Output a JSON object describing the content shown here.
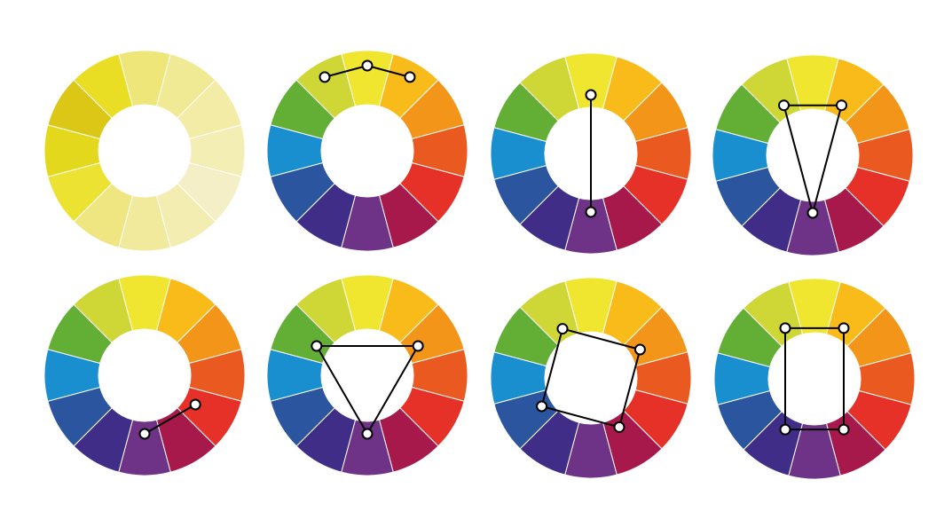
{
  "wheels": [
    {
      "colors": [
        "#efe67a",
        "#f1ea95",
        "#f2eca6",
        "#f3eeb3",
        "#f4efc6",
        "#f3edb2",
        "#f1ea9c",
        "#efe681",
        "#ece231",
        "#e4d81c",
        "#dcc717",
        "#e9de24"
      ],
      "points": []
    },
    {
      "colors": [
        "#f0e52f",
        "#f9bb1a",
        "#f39518",
        "#ea5a20",
        "#e53128",
        "#a8194b",
        "#6e3387",
        "#3f2d87",
        "#2c55a0",
        "#1a8fcf",
        "#63ae34",
        "#cfd736"
      ],
      "points": [
        11,
        0,
        1
      ]
    },
    {
      "colors": [
        "#f0e52f",
        "#f9bb1a",
        "#f39518",
        "#ea5a20",
        "#e53128",
        "#a8194b",
        "#6e3387",
        "#3f2d87",
        "#2c55a0",
        "#1a8fcf",
        "#63ae34",
        "#cfd736"
      ],
      "points": [
        0,
        6
      ]
    },
    {
      "colors": [
        "#f0e52f",
        "#f9bb1a",
        "#f39518",
        "#ea5a20",
        "#e53128",
        "#a8194b",
        "#6e3387",
        "#3f2d87",
        "#2c55a0",
        "#1a8fcf",
        "#63ae34",
        "#cfd736"
      ],
      "points": [
        11,
        1,
        6
      ]
    },
    {
      "colors": [
        "#f0e52f",
        "#f9bb1a",
        "#f39518",
        "#ea5a20",
        "#e53128",
        "#a8194b",
        "#6e3387",
        "#3f2d87",
        "#2c55a0",
        "#1a8fcf",
        "#63ae34",
        "#cfd736"
      ],
      "points": [
        4,
        6
      ]
    },
    {
      "colors": [
        "#f0e52f",
        "#f9bb1a",
        "#f39518",
        "#ea5a20",
        "#e53128",
        "#a8194b",
        "#6e3387",
        "#3f2d87",
        "#2c55a0",
        "#1a8fcf",
        "#63ae34",
        "#cfd736"
      ],
      "points": [
        10,
        2,
        6
      ]
    },
    {
      "colors": [
        "#f0e52f",
        "#f9bb1a",
        "#f39518",
        "#ea5a20",
        "#e53128",
        "#a8194b",
        "#6e3387",
        "#3f2d87",
        "#2c55a0",
        "#1a8fcf",
        "#63ae34",
        "#cfd736"
      ],
      "points": [
        11,
        2,
        5,
        8
      ]
    },
    {
      "colors": [
        "#f0e52f",
        "#f9bb1a",
        "#f39518",
        "#ea5a20",
        "#e53128",
        "#a8194b",
        "#6e3387",
        "#3f2d87",
        "#2c55a0",
        "#1a8fcf",
        "#63ae34",
        "#cfd736"
      ],
      "points": [
        11,
        1,
        5,
        7
      ]
    }
  ]
}
